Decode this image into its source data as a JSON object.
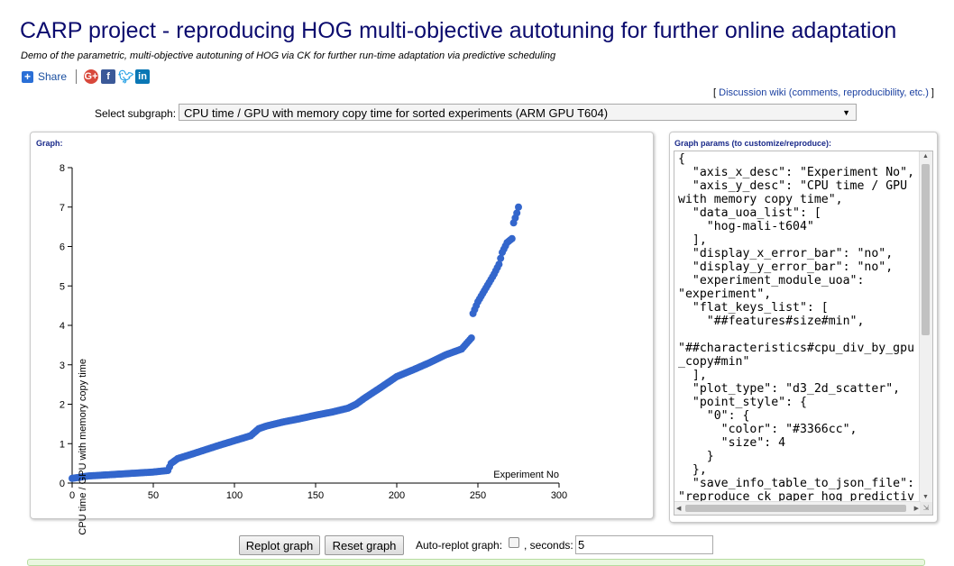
{
  "page": {
    "title": "CARP project - reproducing HOG multi-objective autotuning for further online adaptation",
    "subtitle": "Demo of the parametric, multi-objective autotuning of HOG via CK for further run-time adaptation via predictive scheduling"
  },
  "share": {
    "label": "Share",
    "icons": [
      "google-plus-icon",
      "facebook-icon",
      "twitter-icon",
      "linkedin-icon"
    ]
  },
  "wiki_link": {
    "open": "[ ",
    "label": "Discussion wiki (comments, reproducibility, etc.)",
    "close": " ]"
  },
  "subgraph": {
    "label": "Select subgraph:",
    "selected": "CPU time / GPU with memory copy time for sorted experiments (ARM GPU T604)"
  },
  "graph_panel": {
    "title": "Graph:"
  },
  "params_panel": {
    "title": "Graph params (to customize/reproduce):",
    "json": "{\n  \"axis_x_desc\": \"Experiment No\",\n  \"axis_y_desc\": \"CPU time / GPU\nwith memory copy time\",\n  \"data_uoa_list\": [\n    \"hog-mali-t604\"\n  ],\n  \"display_x_error_bar\": \"no\",\n  \"display_y_error_bar\": \"no\",\n  \"experiment_module_uoa\":\n\"experiment\",\n  \"flat_keys_list\": [\n    \"##features#size#min\",\n\n\"##characteristics#cpu_div_by_gpu\n_copy#min\"\n  ],\n  \"plot_type\": \"d3_2d_scatter\",\n  \"point_style\": {\n    \"0\": {\n      \"color\": \"#3366cc\",\n      \"size\": 4\n    }\n  },\n  \"save_info_table_to_json_file\":\n\"reproduce_ck_paper_hog_predictiv"
  },
  "controls": {
    "replot_label": "Replot graph",
    "reset_label": "Reset graph",
    "auto_replot_label": "Auto-replot graph:",
    "seconds_label": ", seconds:",
    "seconds_value": "5",
    "auto_replot_checked": false
  },
  "chart_data": {
    "type": "scatter",
    "xlabel": "Experiment No",
    "ylabel": "CPU time / GPU with memory copy time",
    "xlim": [
      0,
      300
    ],
    "ylim": [
      0,
      8
    ],
    "x_ticks": [
      0,
      50,
      100,
      150,
      200,
      250,
      300
    ],
    "y_ticks": [
      0,
      1,
      2,
      3,
      4,
      5,
      6,
      7,
      8
    ],
    "point_color": "#3366cc",
    "point_size": 4,
    "n_points": 276,
    "curve_points": [
      [
        0,
        0.12
      ],
      [
        10,
        0.18
      ],
      [
        30,
        0.23
      ],
      [
        50,
        0.28
      ],
      [
        59,
        0.32
      ],
      [
        61,
        0.5
      ],
      [
        65,
        0.62
      ],
      [
        75,
        0.75
      ],
      [
        90,
        0.95
      ],
      [
        110,
        1.2
      ],
      [
        115,
        1.38
      ],
      [
        120,
        1.45
      ],
      [
        130,
        1.55
      ],
      [
        140,
        1.63
      ],
      [
        150,
        1.72
      ],
      [
        160,
        1.8
      ],
      [
        170,
        1.9
      ],
      [
        175,
        2.0
      ],
      [
        180,
        2.15
      ],
      [
        190,
        2.42
      ],
      [
        200,
        2.7
      ],
      [
        210,
        2.87
      ],
      [
        220,
        3.05
      ],
      [
        230,
        3.25
      ],
      [
        240,
        3.4
      ],
      [
        246,
        3.68
      ],
      [
        247,
        4.3
      ],
      [
        250,
        4.6
      ],
      [
        255,
        4.95
      ],
      [
        260,
        5.3
      ],
      [
        263,
        5.55
      ],
      [
        265,
        5.85
      ],
      [
        268,
        6.1
      ],
      [
        271,
        6.2
      ],
      [
        272,
        6.6
      ],
      [
        274,
        6.85
      ],
      [
        275,
        7.0
      ]
    ]
  }
}
